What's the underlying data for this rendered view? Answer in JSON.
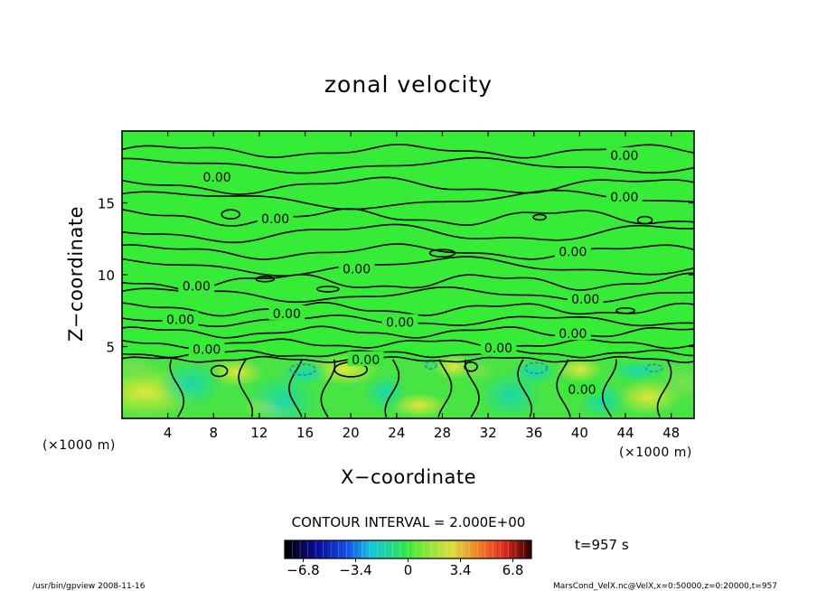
{
  "chart_data": {
    "type": "contour",
    "title": "zonal velocity",
    "xlabel": "X−coordinate",
    "ylabel": "Z−coordinate",
    "x_unit": "(×1000 m)",
    "y_unit": "(×1000 m)",
    "xlim": [
      0,
      50
    ],
    "ylim": [
      0,
      20
    ],
    "xticks": [
      4,
      8,
      12,
      16,
      20,
      24,
      28,
      32,
      36,
      40,
      44,
      48
    ],
    "yticks": [
      5,
      10,
      15
    ],
    "contour_labels": [
      {
        "text": "0.00",
        "x": 43.9,
        "z": 18.3
      },
      {
        "text": "0.00",
        "x": 43.9,
        "z": 15.4
      },
      {
        "text": "0.00",
        "x": 8.3,
        "z": 16.8
      },
      {
        "text": "0.00",
        "x": 13.4,
        "z": 13.9
      },
      {
        "text": "0.00",
        "x": 20.5,
        "z": 10.4
      },
      {
        "text": "0.00",
        "x": 39.4,
        "z": 11.6
      },
      {
        "text": "0.00",
        "x": 40.5,
        "z": 8.3
      },
      {
        "text": "0.00",
        "x": 6.5,
        "z": 9.2
      },
      {
        "text": "0.00",
        "x": 14.4,
        "z": 7.3
      },
      {
        "text": "0.00",
        "x": 5.1,
        "z": 6.9
      },
      {
        "text": "0.00",
        "x": 24.3,
        "z": 6.7
      },
      {
        "text": "0.00",
        "x": 39.4,
        "z": 5.9
      },
      {
        "text": "0.00",
        "x": 7.4,
        "z": 4.8
      },
      {
        "text": "0.00",
        "x": 32.9,
        "z": 4.9
      },
      {
        "text": "0.00",
        "x": 21.3,
        "z": 4.1
      },
      {
        "text": "0.00",
        "x": 40.2,
        "z": 2.0
      }
    ],
    "contour_interval": "CONTOUR INTERVAL = 2.000E+00",
    "time_label": "t=957 s",
    "colorbar": {
      "min": -8,
      "max": 8,
      "tick_labels": [
        "−6.8",
        "−3.4",
        "0",
        "3.4",
        "6.8"
      ],
      "tick_values": [
        -6.8,
        -3.4,
        0,
        3.4,
        6.8
      ]
    }
  },
  "footer": {
    "left": "/usr/bin/gpview  2008-11-16",
    "right": "MarsCond_VelX.nc@VelX,x=0:50000,z=0:20000,t=957"
  },
  "colors": {
    "field_background": "#33ee33",
    "positive_blob": "#d8e040",
    "negative_blob": "#20d8a0",
    "contour_line": "#000000"
  }
}
